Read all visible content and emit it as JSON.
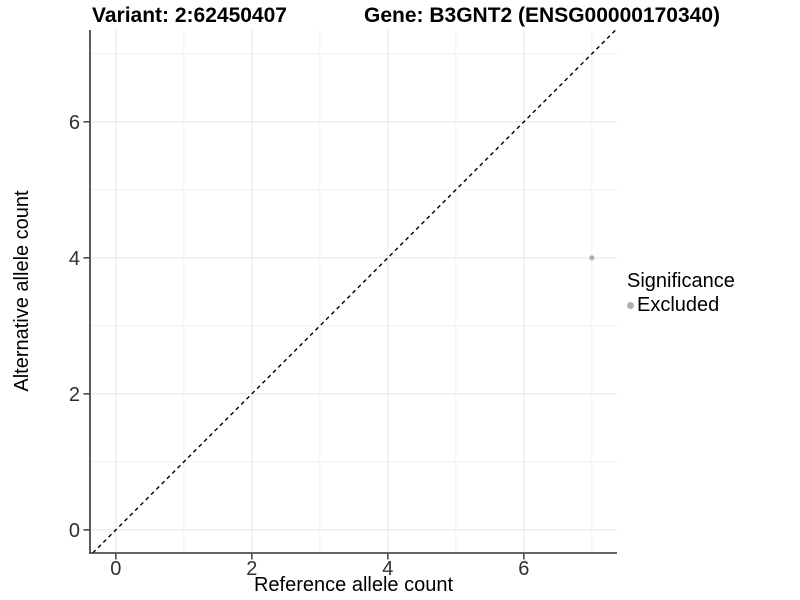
{
  "chart_data": {
    "type": "scatter",
    "title_variant": "Variant: 2:62450407",
    "title_gene": "Gene: B3GNT2 (ENSG00000170340)",
    "xlabel": "Reference allele count",
    "ylabel": "Alternative allele count",
    "x_ticks": [
      0,
      2,
      4,
      6
    ],
    "y_ticks": [
      0,
      2,
      4,
      6
    ],
    "x_minor_grid": [
      1,
      3,
      5,
      7
    ],
    "y_minor_grid": [
      1,
      3,
      5,
      7
    ],
    "xlim": [
      -0.38,
      7.37
    ],
    "ylim": [
      -0.34,
      7.35
    ],
    "points": [
      {
        "x": 7,
        "y": 4,
        "significance": "Excluded"
      }
    ],
    "identity_line": {
      "style": "dashed",
      "equation": "y = x"
    },
    "legend": {
      "title": "Significance",
      "entries": [
        {
          "label": "Excluded",
          "color": "#b0b0b0"
        }
      ]
    },
    "colors": {
      "point_excluded": "#b0b0b0",
      "grid_major": "#e5e5e5",
      "grid_minor": "#f1f1f1",
      "axis_line": "#333333",
      "tick_mark": "#333333",
      "tick_text": "#303030",
      "dashed_line": "#000000",
      "background": "#ffffff"
    }
  }
}
